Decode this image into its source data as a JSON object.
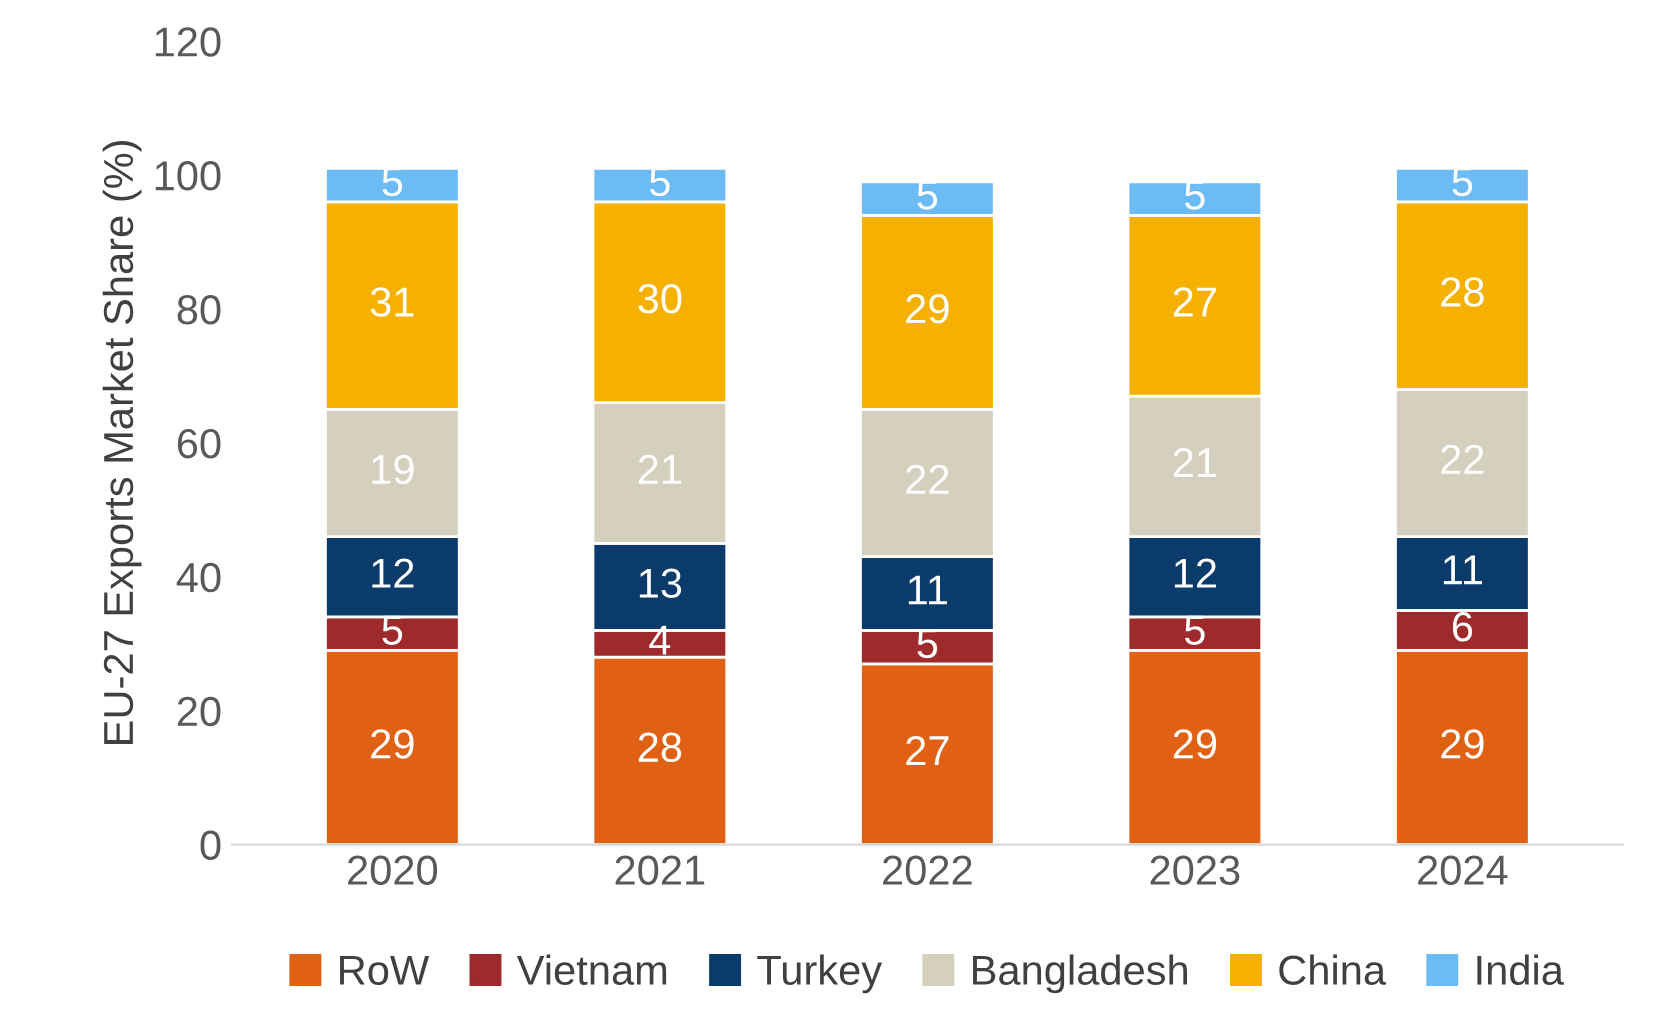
{
  "chart_data": {
    "type": "bar",
    "stacked": true,
    "ylabel": "EU-27 Exports Market Share (%)",
    "categories": [
      "2020",
      "2021",
      "2022",
      "2023",
      "2024"
    ],
    "series": [
      {
        "name": "RoW",
        "color": "#e06114",
        "values": [
          29,
          28,
          27,
          29,
          29
        ]
      },
      {
        "name": "Vietnam",
        "color": "#9e2a2b",
        "values": [
          5,
          4,
          5,
          5,
          6
        ]
      },
      {
        "name": "Turkey",
        "color": "#0b3b6a",
        "values": [
          12,
          13,
          11,
          12,
          11
        ]
      },
      {
        "name": "Bangladesh",
        "color": "#d4d0bd",
        "values": [
          19,
          21,
          22,
          21,
          22
        ]
      },
      {
        "name": "China",
        "color": "#f5b000",
        "values": [
          31,
          30,
          29,
          27,
          28
        ]
      },
      {
        "name": "India",
        "color": "#6dbbf5",
        "values": [
          5,
          5,
          5,
          5,
          5
        ]
      }
    ],
    "ylim": [
      0,
      120
    ],
    "yticks": [
      0,
      20,
      40,
      60,
      80,
      100,
      120
    ],
    "grid": false,
    "legend": "bottom",
    "data_labels": true
  }
}
